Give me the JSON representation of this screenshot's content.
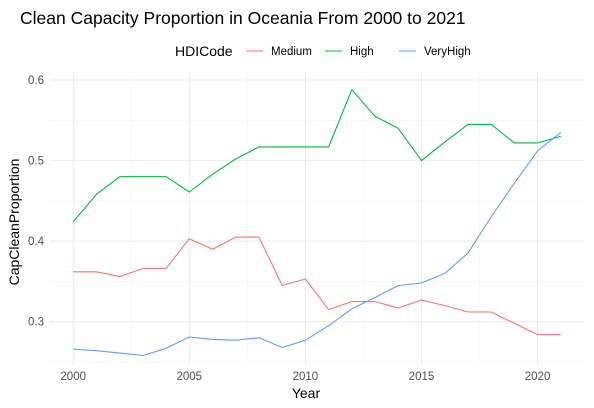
{
  "chart_data": {
    "type": "line",
    "title": "Clean Capacity Proportion in Oceania From 2000 to 2021",
    "xlabel": "Year",
    "ylabel": "CapCleanProportion",
    "xlim": [
      1999,
      2022
    ],
    "ylim": [
      0.245,
      0.61
    ],
    "x_ticks": [
      2000,
      2005,
      2010,
      2015,
      2020
    ],
    "y_ticks": [
      0.3,
      0.4,
      0.5,
      0.6
    ],
    "x_tick_labels": [
      "2000",
      "2005",
      "2010",
      "2015",
      "2020"
    ],
    "y_tick_labels": [
      "0.3",
      "0.4",
      "0.5",
      "0.6"
    ],
    "grid": true,
    "legend": {
      "title": "HDICode",
      "position": "top"
    },
    "x": [
      2000,
      2001,
      2002,
      2003,
      2004,
      2005,
      2006,
      2007,
      2008,
      2009,
      2010,
      2011,
      2012,
      2013,
      2014,
      2015,
      2016,
      2017,
      2018,
      2019,
      2020,
      2021
    ],
    "series": [
      {
        "name": "Medium",
        "color": "#F8766D",
        "values": [
          0.362,
          0.362,
          0.356,
          0.366,
          0.366,
          0.403,
          0.39,
          0.405,
          0.405,
          0.345,
          0.353,
          0.315,
          0.325,
          0.325,
          0.317,
          0.327,
          0.32,
          0.312,
          0.312,
          0.298,
          0.284,
          0.284
        ]
      },
      {
        "name": "High",
        "color": "#00BA38",
        "values": [
          0.424,
          0.458,
          0.48,
          0.48,
          0.48,
          0.461,
          0.483,
          0.502,
          0.517,
          0.517,
          0.517,
          0.517,
          0.588,
          0.555,
          0.54,
          0.5,
          0.523,
          0.545,
          0.545,
          0.522,
          0.522,
          0.53
        ]
      },
      {
        "name": "VeryHigh",
        "color": "#619CFF",
        "values": [
          0.266,
          0.264,
          0.261,
          0.258,
          0.267,
          0.281,
          0.278,
          0.277,
          0.28,
          0.268,
          0.277,
          0.295,
          0.316,
          0.33,
          0.345,
          0.348,
          0.36,
          0.385,
          0.43,
          0.472,
          0.512,
          0.535
        ]
      }
    ]
  }
}
